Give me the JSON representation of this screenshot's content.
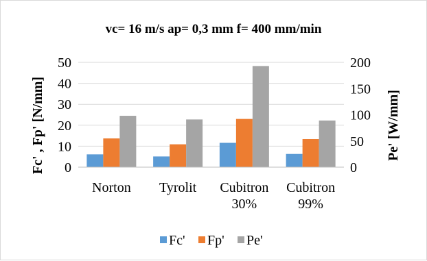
{
  "chart_data": {
    "type": "bar",
    "title": "vc= 16 m/s  ap= 0,3 mm  f= 400 mm/min",
    "categories": [
      [
        "Norton"
      ],
      [
        "Tyrolit"
      ],
      [
        "Cubitron",
        "30%"
      ],
      [
        "Cubitron",
        "99%"
      ]
    ],
    "series": [
      {
        "name": "Fc'",
        "axis": "left",
        "color": "#5B9BD5",
        "values": [
          6.1,
          5.1,
          11.6,
          6.3
        ]
      },
      {
        "name": "Fp'",
        "axis": "left",
        "color": "#ED7D31",
        "values": [
          13.7,
          10.9,
          23.0,
          13.4
        ]
      },
      {
        "name": "Pe'",
        "axis": "right",
        "color": "#A5A5A5",
        "values": [
          98,
          91,
          193,
          89
        ]
      }
    ],
    "ylabel": "Fc' , Fp' [N/mm]",
    "ylabel_right": "Pe' [W/mm]",
    "ylim": [
      0,
      50
    ],
    "ylim_right": [
      0,
      200
    ],
    "yticks": [
      "0",
      "10",
      "20",
      "30",
      "40",
      "50"
    ],
    "yticks_right": [
      "0",
      "50",
      "100",
      "150",
      "200"
    ],
    "grid": true,
    "legend_position": "bottom"
  }
}
